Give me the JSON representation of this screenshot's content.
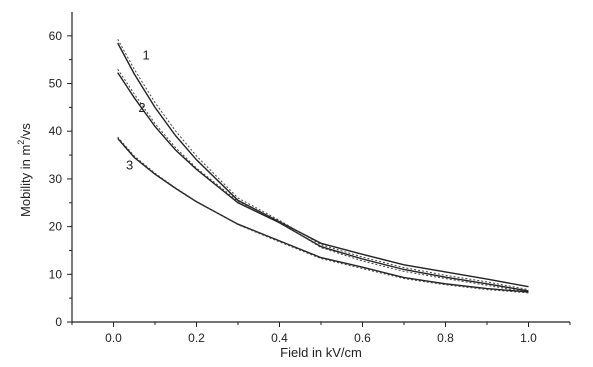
{
  "chart_data": {
    "type": "line",
    "xlabel": "Field in kV/cm",
    "ylabel": "Mobility in m",
    "ylabel_sup": "2",
    "ylabel_tail": "/vs",
    "xlim": [
      -0.1,
      1.1
    ],
    "ylim": [
      0,
      65
    ],
    "x_ticks": [
      0.0,
      0.2,
      0.4,
      0.6,
      0.8,
      1.0
    ],
    "x_tick_labels": [
      "0.0",
      "0.2",
      "0.4",
      "0.6",
      "0.8",
      "1.0"
    ],
    "y_ticks": [
      0,
      10,
      20,
      30,
      40,
      50,
      60
    ],
    "y_tick_labels": [
      "0",
      "10",
      "20",
      "30",
      "40",
      "50",
      "60"
    ],
    "grid": false,
    "series": [
      {
        "name": "1",
        "style": "solid",
        "x": [
          0.01,
          0.05,
          0.1,
          0.15,
          0.2,
          0.3,
          0.4,
          0.5,
          0.6,
          0.7,
          0.8,
          0.9,
          1.0
        ],
        "y": [
          58.5,
          52,
          45,
          39,
          34,
          25.5,
          21,
          16.5,
          14.2,
          12,
          10.5,
          9,
          7.4
        ]
      },
      {
        "name": "1",
        "style": "dotted",
        "x": [
          0.01,
          0.05,
          0.1,
          0.15,
          0.2,
          0.3,
          0.4,
          0.5,
          0.6,
          0.7,
          0.8,
          0.9,
          1.0
        ],
        "y": [
          59.3,
          53,
          46,
          40,
          34.8,
          26,
          21.3,
          16.2,
          13.6,
          11.4,
          9.8,
          8.4,
          6.8
        ]
      },
      {
        "name": "2",
        "style": "solid",
        "x": [
          0.01,
          0.05,
          0.1,
          0.15,
          0.2,
          0.3,
          0.4,
          0.5,
          0.6,
          0.7,
          0.8,
          0.9,
          1.0
        ],
        "y": [
          52.3,
          47,
          41,
          36,
          32,
          25,
          20.8,
          15.8,
          13.2,
          11,
          9.4,
          8,
          6.5
        ]
      },
      {
        "name": "2",
        "style": "dotted",
        "x": [
          0.01,
          0.05,
          0.1,
          0.15,
          0.2,
          0.3,
          0.4,
          0.5,
          0.6,
          0.7,
          0.8,
          0.9,
          1.0
        ],
        "y": [
          53,
          47.8,
          41.6,
          36.5,
          32.3,
          25.3,
          21,
          15.6,
          12.8,
          10.6,
          9.1,
          7.7,
          6.2
        ]
      },
      {
        "name": "3",
        "style": "solid",
        "x": [
          0.01,
          0.05,
          0.1,
          0.15,
          0.2,
          0.3,
          0.4,
          0.5,
          0.6,
          0.7,
          0.8,
          0.9,
          1.0
        ],
        "y": [
          38.5,
          34.5,
          31,
          28,
          25.2,
          20.5,
          17,
          13.5,
          11.5,
          9.3,
          8,
          7,
          6.3
        ]
      },
      {
        "name": "3",
        "style": "dotted",
        "x": [
          0.01,
          0.05,
          0.1,
          0.15,
          0.2,
          0.3,
          0.4,
          0.5,
          0.6,
          0.7,
          0.8,
          0.9,
          1.0
        ],
        "y": [
          38.8,
          34.8,
          31.2,
          28.1,
          25.3,
          20.4,
          16.8,
          13.3,
          11.2,
          9.1,
          7.8,
          6.8,
          6.1
        ]
      }
    ],
    "curve_labels": [
      {
        "text": "1",
        "x": 0.07,
        "y": 55
      },
      {
        "text": "2",
        "x": 0.06,
        "y": 44
      },
      {
        "text": "3",
        "x": 0.03,
        "y": 32
      }
    ]
  }
}
